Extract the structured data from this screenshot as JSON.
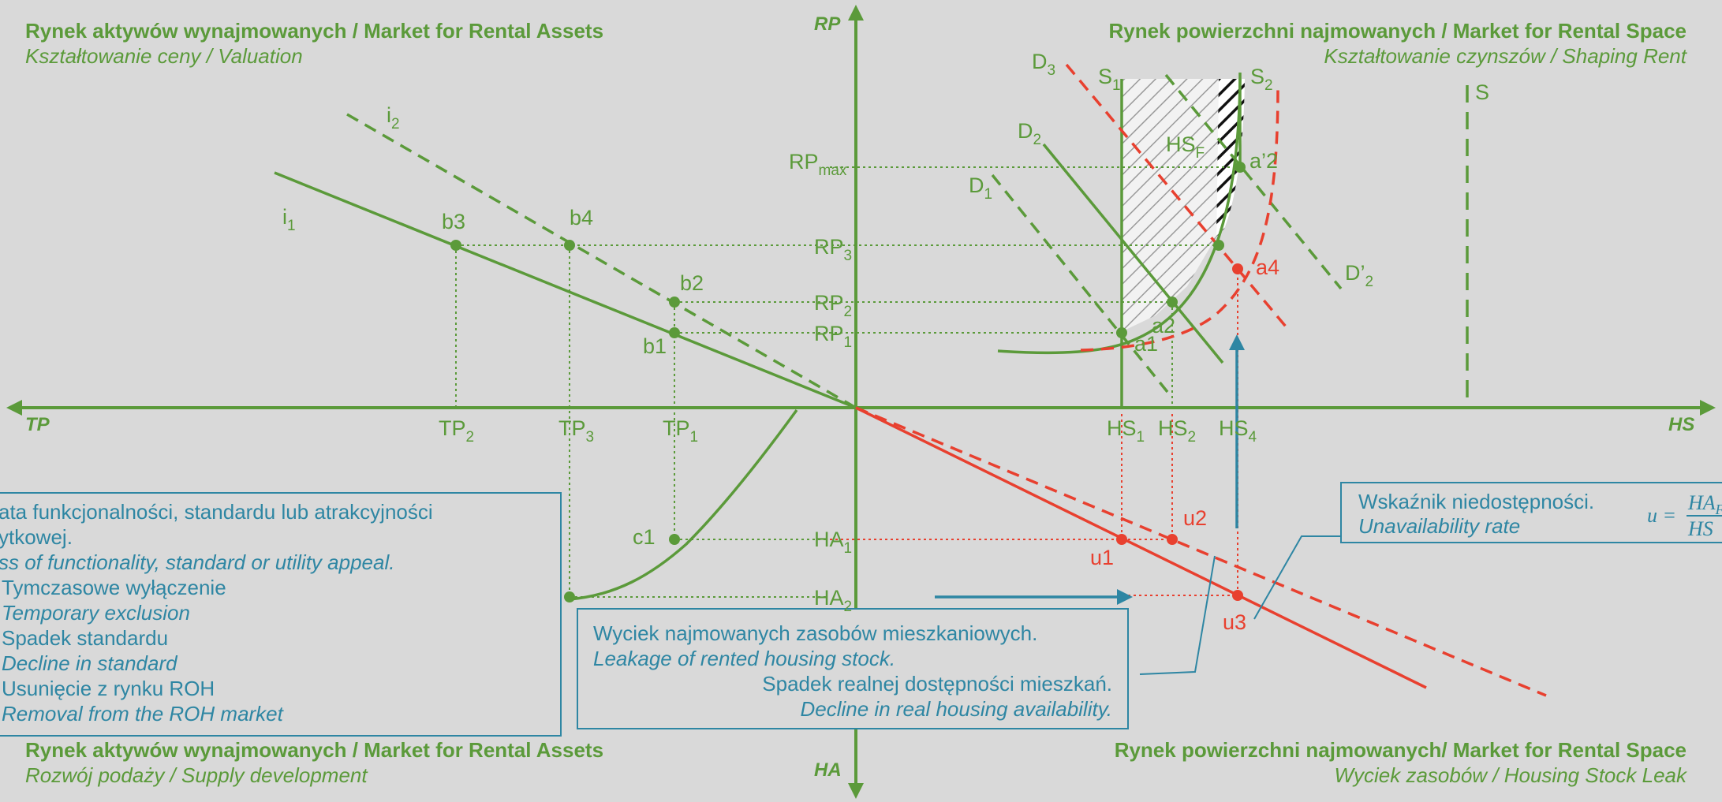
{
  "quadrants": {
    "top_left": {
      "title": "Rynek aktywów wynajmowanych / Market for Rental Assets",
      "subtitle": "Kształtowanie ceny / Valuation"
    },
    "top_right": {
      "title": "Rynek powierzchni najmowanych / Market for Rental Space",
      "subtitle": "Kształtowanie czynszów / Shaping Rent"
    },
    "bottom_left": {
      "title": "Rynek aktywów wynajmowanych / Market for Rental Assets",
      "subtitle": "Rozwój podaży / Supply development"
    },
    "bottom_right": {
      "title": "Rynek powierzchni najmowanych/ Market for Rental Space",
      "subtitle": "Wyciek zasobów / Housing Stock Leak"
    }
  },
  "axes": {
    "top": "RP",
    "bottom": "HA",
    "left": "TP",
    "right": "HS"
  },
  "labels": {
    "i1": "i",
    "i1_sub": "1",
    "i2": "i",
    "i2_sub": "2",
    "b1": "b1",
    "b2": "b2",
    "b3": "b3",
    "b4": "b4",
    "c1": "c1",
    "rpmax": "RP",
    "rpmax_sub": "max",
    "rp1": "RP",
    "rp1_sub": "1",
    "rp2": "RP",
    "rp2_sub": "2",
    "rp3": "RP",
    "rp3_sub": "3",
    "tp1": "TP",
    "tp1_sub": "1",
    "tp2": "TP",
    "tp2_sub": "2",
    "tp3": "TP",
    "tp3_sub": "3",
    "hs1": "HS",
    "hs1_sub": "1",
    "hs2": "HS",
    "hs2_sub": "2",
    "hs4": "HS",
    "hs4_sub": "4",
    "ha1": "HA",
    "ha1_sub": "1",
    "ha2": "HA",
    "ha2_sub": "2",
    "d1": "D",
    "d1_sub": "1",
    "d2": "D",
    "d2_sub": "2",
    "d3": "D",
    "d3_sub": "3",
    "dp2": "D’",
    "dp2_sub": "2",
    "s1": "S",
    "s1_sub": "1",
    "s2": "S",
    "s2_sub": "2",
    "s": "S",
    "hsf": "HS",
    "hsf_sub": "F",
    "a1": "a1",
    "a2": "a2",
    "a4": "a4",
    "ap2": "a’2",
    "u1": "u1",
    "u2": "u2",
    "u3": "u3"
  },
  "boxes": {
    "left": {
      "line1": "ata funkcjonalności, standardu lub atrakcyjności",
      "line2": "ytkowej.",
      "line3": "ss of functionality, standard or utility appeal.",
      "item1_pl": "Tymczasowe wyłączenie",
      "item1_en": "Temporary exclusion",
      "item2_pl": "Spadek standardu",
      "item2_en": "Decline in standard",
      "item3_pl": "Usunięcie z rynku ROH",
      "item3_en": "Removal from the ROH market"
    },
    "middle": {
      "line1": "Wyciek najmowanych zasobów mieszkaniowych.",
      "line2": "Leakage of rented housing stock.",
      "line3": "Spadek realnej dostępności mieszkań.",
      "line4": "Decline in real housing availability."
    },
    "right": {
      "line1": "Wskaźnik niedostępności.",
      "line2": "Unavailability rate",
      "formula_lhs": "u =",
      "formula_num": "HA",
      "formula_num_sub": "F",
      "formula_den": "HS"
    }
  },
  "colors": {
    "green": "#5b9a3a",
    "red": "#e8402f",
    "blue": "#2e86a3",
    "background": "#d9d9d9"
  }
}
